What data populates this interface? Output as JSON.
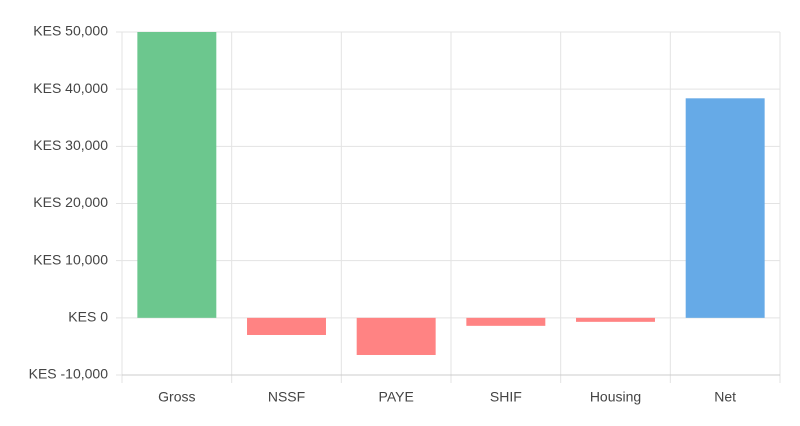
{
  "chart_data": {
    "type": "bar",
    "categories": [
      "Gross",
      "NSSF",
      "PAYE",
      "SHIF",
      "Housing",
      "Net"
    ],
    "values": [
      50000,
      -3000,
      -6500,
      -1400,
      -700,
      38400
    ],
    "colors": [
      "#6cc78e",
      "#ff8383",
      "#ff8383",
      "#ff8383",
      "#ff8383",
      "#66aae7"
    ],
    "ylim": [
      -10000,
      50000
    ],
    "yticks": [
      {
        "value": -10000,
        "label": "KES -10,000"
      },
      {
        "value": 0,
        "label": "KES 0"
      },
      {
        "value": 10000,
        "label": "KES 10,000"
      },
      {
        "value": 20000,
        "label": "KES 20,000"
      },
      {
        "value": 30000,
        "label": "KES 30,000"
      },
      {
        "value": 40000,
        "label": "KES 40,000"
      },
      {
        "value": 50000,
        "label": "KES 50,000"
      }
    ],
    "grid": true
  }
}
